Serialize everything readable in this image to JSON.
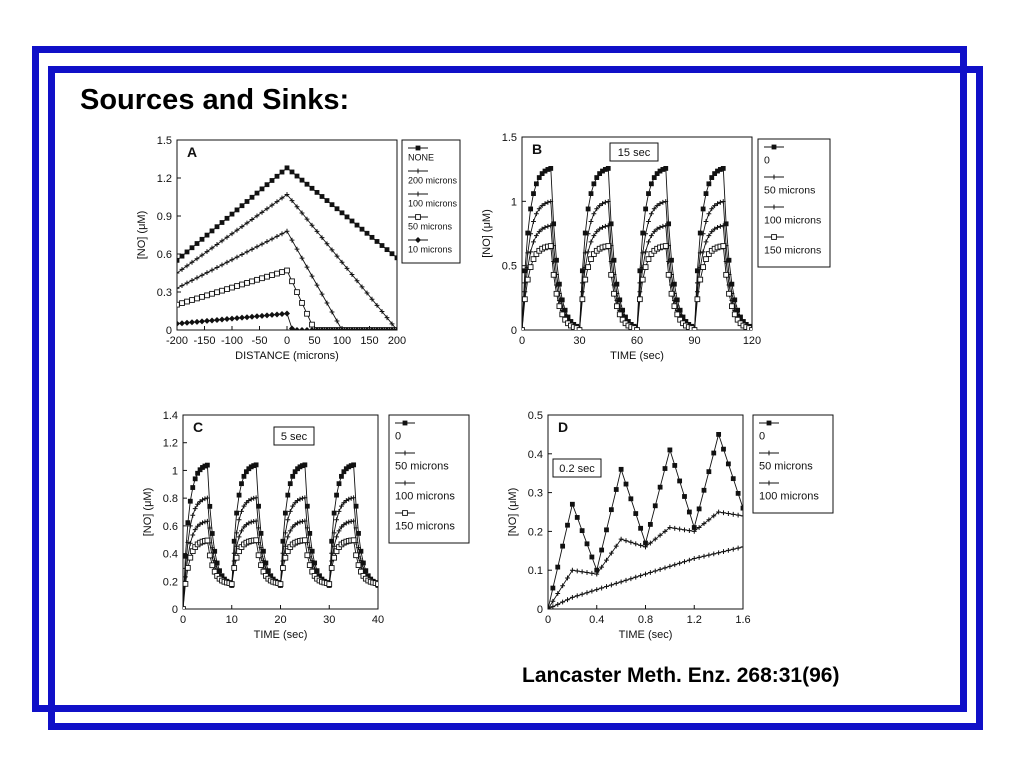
{
  "slide": {
    "title": "Sources and Sinks:",
    "citation": "Lancaster Meth. Enz. 268:31(96)"
  },
  "colors": {
    "frame": "#1010c8",
    "ink": "#111111"
  },
  "chart_data": [
    {
      "id": "A",
      "type": "line",
      "panel_label": "A",
      "xlabel": "DISTANCE (microns)",
      "ylabel": "[NO] (μM)",
      "xlim": [
        -200,
        200
      ],
      "ylim": [
        0,
        1.5
      ],
      "xticks": [
        -200,
        -150,
        -100,
        -50,
        0,
        50,
        100,
        150,
        200
      ],
      "xtick_labels": [
        "-200",
        "-150",
        "-100",
        "-50",
        "0",
        "50",
        "100",
        "150",
        "200"
      ],
      "yticks": [
        0,
        0.3,
        0.6,
        0.9,
        1.2,
        1.5
      ],
      "ytick_labels": [
        "0",
        "0.3",
        "0.6",
        "0.9",
        "1.2",
        "1.5"
      ],
      "legend_position": "right",
      "series": [
        {
          "name": "NONE",
          "marker": "square-filled",
          "x": [
            -200,
            0,
            200
          ],
          "y": [
            0.55,
            1.28,
            0.57
          ]
        },
        {
          "name": "200 microns",
          "marker": "plus",
          "x": [
            -200,
            0,
            200
          ],
          "y": [
            0.45,
            1.07,
            0.0
          ]
        },
        {
          "name": "100 microns",
          "marker": "plus",
          "x": [
            -200,
            0,
            100,
            200
          ],
          "y": [
            0.33,
            0.78,
            0.0,
            0.0
          ]
        },
        {
          "name": "50 microns",
          "marker": "square-open",
          "x": [
            -200,
            0,
            50,
            200
          ],
          "y": [
            0.2,
            0.47,
            0.0,
            0.0
          ]
        },
        {
          "name": "10 microns",
          "marker": "diamond",
          "x": [
            -200,
            0,
            10,
            200
          ],
          "y": [
            0.05,
            0.13,
            0.0,
            0.0
          ]
        }
      ]
    },
    {
      "id": "B",
      "type": "line",
      "panel_label": "B",
      "annotation": "15 sec",
      "xlabel": "TIME (sec)",
      "ylabel": "[NO] (μM)",
      "xlim": [
        0,
        120
      ],
      "ylim": [
        0,
        1.5
      ],
      "xticks": [
        0,
        30,
        60,
        90,
        120
      ],
      "xtick_labels": [
        "0",
        "30",
        "60",
        "90",
        "120"
      ],
      "yticks": [
        0,
        0.5,
        1,
        1.5
      ],
      "ytick_labels": [
        "0",
        "0.5",
        "1",
        "1.5"
      ],
      "legend_position": "right",
      "period": 30,
      "on_duration": 15,
      "cycles": 4,
      "series": [
        {
          "name": "0",
          "marker": "square-filled",
          "peak": 1.27
        },
        {
          "name": "50 microns",
          "marker": "plus",
          "peak": 1.01
        },
        {
          "name": "100 microns",
          "marker": "plus",
          "peak": 0.82
        },
        {
          "name": "150 microns",
          "marker": "square-open",
          "peak": 0.66
        }
      ]
    },
    {
      "id": "C",
      "type": "line",
      "panel_label": "C",
      "annotation": "5 sec",
      "xlabel": "TIME (sec)",
      "ylabel": "[NO] (μM)",
      "xlim": [
        0,
        40
      ],
      "ylim": [
        0,
        1.4
      ],
      "xticks": [
        0,
        10,
        20,
        30,
        40
      ],
      "xtick_labels": [
        "0",
        "10",
        "20",
        "30",
        "40"
      ],
      "yticks": [
        0,
        0.2,
        0.4,
        0.6,
        0.8,
        1,
        1.2,
        1.4
      ],
      "ytick_labels": [
        "0",
        "0.2",
        "0.4",
        "0.6",
        "0.8",
        "1",
        "1.2",
        "1.4"
      ],
      "legend_position": "right",
      "period": 10,
      "on_duration": 5,
      "cycles": 4,
      "series": [
        {
          "name": "0",
          "marker": "square-filled",
          "peak": 1.05,
          "trough": 0.17
        },
        {
          "name": "50 microns",
          "marker": "plus",
          "peak": 0.81,
          "trough": 0.17
        },
        {
          "name": "100 microns",
          "marker": "plus",
          "peak": 0.64,
          "trough": 0.18
        },
        {
          "name": "150 microns",
          "marker": "square-open",
          "peak": 0.5,
          "trough": 0.18
        }
      ]
    },
    {
      "id": "D",
      "type": "line",
      "panel_label": "D",
      "annotation": "0.2 sec",
      "xlabel": "TIME (sec)",
      "ylabel": "[NO] (μM)",
      "xlim": [
        0,
        1.6
      ],
      "ylim": [
        0,
        0.5
      ],
      "xticks": [
        0,
        0.4,
        0.8,
        1.2,
        1.6
      ],
      "xtick_labels": [
        "0",
        "0.4",
        "0.8",
        "1.2",
        "1.6"
      ],
      "yticks": [
        0,
        0.1,
        0.2,
        0.3,
        0.4,
        0.5
      ],
      "ytick_labels": [
        "0",
        "0.1",
        "0.2",
        "0.3",
        "0.4",
        "0.5"
      ],
      "legend_position": "right",
      "series": [
        {
          "name": "0",
          "marker": "square-filled",
          "x": [
            0,
            0.2,
            0.4,
            0.6,
            0.8,
            1.0,
            1.2,
            1.4,
            1.6
          ],
          "y": [
            0,
            0.27,
            0.1,
            0.36,
            0.17,
            0.41,
            0.21,
            0.45,
            0.26
          ]
        },
        {
          "name": "50 microns",
          "marker": "plus",
          "x": [
            0,
            0.2,
            0.4,
            0.6,
            0.8,
            1.0,
            1.2,
            1.4,
            1.6
          ],
          "y": [
            0,
            0.1,
            0.09,
            0.18,
            0.16,
            0.21,
            0.2,
            0.25,
            0.24
          ]
        },
        {
          "name": "100 microns",
          "marker": "plus",
          "x": [
            0,
            0.2,
            0.4,
            0.6,
            0.8,
            1.0,
            1.2,
            1.4,
            1.6
          ],
          "y": [
            0,
            0.03,
            0.05,
            0.07,
            0.09,
            0.11,
            0.13,
            0.145,
            0.16
          ]
        }
      ]
    }
  ]
}
